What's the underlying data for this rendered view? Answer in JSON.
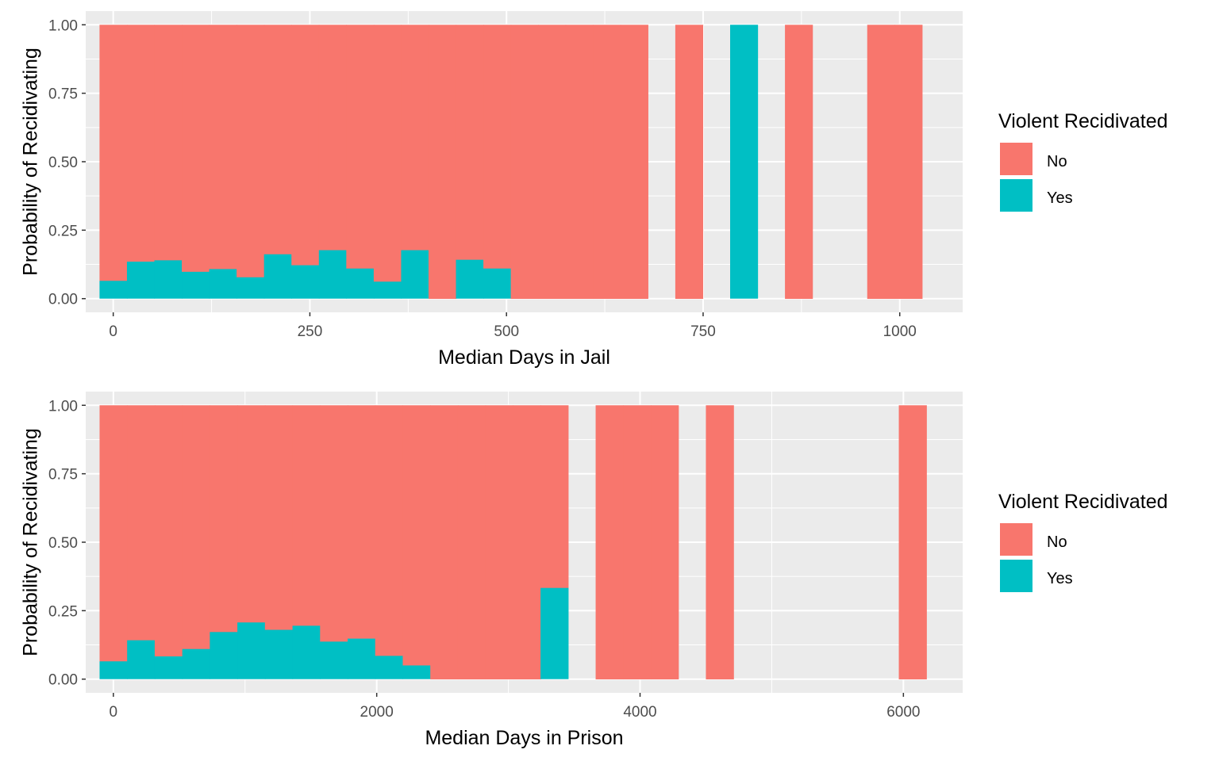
{
  "chart_data": [
    {
      "type": "bar",
      "stacked": "fill",
      "xlabel": "Median Days in Jail",
      "ylabel": "Probability of Recidivating",
      "xlim": [
        -35,
        1080
      ],
      "ylim": [
        -0.05,
        1.05
      ],
      "xticks": [
        0,
        250,
        500,
        750,
        1000
      ],
      "xtick_labels": [
        "0",
        "250",
        "500",
        "750",
        "1000"
      ],
      "yticks": [
        0,
        0.25,
        0.5,
        0.75,
        1
      ],
      "ytick_labels": [
        "0.00",
        "0.25",
        "0.50",
        "0.75",
        "1.00"
      ],
      "grid": true,
      "legend": {
        "title": "Violent Recidivated",
        "placement": "right",
        "entries": [
          {
            "label": "No",
            "color": "#F8766D"
          },
          {
            "label": "Yes",
            "color": "#00BFC4"
          }
        ]
      },
      "bin_width": 34.86,
      "bins": [
        {
          "center": 0,
          "yes": 0.065
        },
        {
          "center": 34.86,
          "yes": 0.135
        },
        {
          "center": 69.72,
          "yes": 0.14
        },
        {
          "center": 104.58,
          "yes": 0.098
        },
        {
          "center": 139.44,
          "yes": 0.108
        },
        {
          "center": 174.3,
          "yes": 0.078
        },
        {
          "center": 209.16,
          "yes": 0.162
        },
        {
          "center": 244.02,
          "yes": 0.122
        },
        {
          "center": 278.88,
          "yes": 0.177
        },
        {
          "center": 313.74,
          "yes": 0.11
        },
        {
          "center": 348.6,
          "yes": 0.062
        },
        {
          "center": 383.46,
          "yes": 0.177
        },
        {
          "center": 418.32,
          "yes": 0.0
        },
        {
          "center": 453.18,
          "yes": 0.142
        },
        {
          "center": 488.04,
          "yes": 0.11
        },
        {
          "center": 522.9,
          "yes": 0.0
        },
        {
          "center": 557.76,
          "yes": 0.0
        },
        {
          "center": 592.62,
          "yes": 0.0
        },
        {
          "center": 627.48,
          "yes": 0.0
        },
        {
          "center": 662.34,
          "yes": 0.0
        },
        {
          "center": 732.06,
          "yes": 0.0
        },
        {
          "center": 801.78,
          "yes": 1.0
        },
        {
          "center": 871.5,
          "yes": 0.0
        },
        {
          "center": 976.08,
          "yes": 0.0
        },
        {
          "center": 1010.94,
          "yes": 0.0
        }
      ]
    },
    {
      "type": "bar",
      "stacked": "fill",
      "xlabel": "Median Days in Prison",
      "ylabel": "Probability of Recidivating",
      "xlim": [
        -210,
        6450
      ],
      "ylim": [
        -0.05,
        1.05
      ],
      "xticks": [
        0,
        2000,
        4000,
        6000
      ],
      "xtick_labels": [
        "0",
        "2000",
        "4000",
        "6000"
      ],
      "yticks": [
        0,
        0.25,
        0.5,
        0.75,
        1
      ],
      "ytick_labels": [
        "0.00",
        "0.25",
        "0.50",
        "0.75",
        "1.00"
      ],
      "grid": true,
      "legend": {
        "title": "Violent Recidivated",
        "placement": "right",
        "entries": [
          {
            "label": "No",
            "color": "#F8766D"
          },
          {
            "label": "Yes",
            "color": "#00BFC4"
          }
        ]
      },
      "bin_width": 209.3,
      "bins": [
        {
          "center": 0,
          "yes": 0.065
        },
        {
          "center": 209.3,
          "yes": 0.142
        },
        {
          "center": 418.6,
          "yes": 0.083
        },
        {
          "center": 627.9,
          "yes": 0.11
        },
        {
          "center": 837.2,
          "yes": 0.172
        },
        {
          "center": 1046.5,
          "yes": 0.207
        },
        {
          "center": 1255.8,
          "yes": 0.18
        },
        {
          "center": 1465.1,
          "yes": 0.195
        },
        {
          "center": 1674.4,
          "yes": 0.137
        },
        {
          "center": 1883.7,
          "yes": 0.148
        },
        {
          "center": 2093.0,
          "yes": 0.085
        },
        {
          "center": 2302.3,
          "yes": 0.05
        },
        {
          "center": 2511.6,
          "yes": 0.0
        },
        {
          "center": 2720.9,
          "yes": 0.0
        },
        {
          "center": 2930.2,
          "yes": 0.0
        },
        {
          "center": 3139.5,
          "yes": 0.0
        },
        {
          "center": 3348.8,
          "yes": 0.333
        },
        {
          "center": 3767.4,
          "yes": 0.0
        },
        {
          "center": 3976.7,
          "yes": 0.0
        },
        {
          "center": 4186.0,
          "yes": 0.0
        },
        {
          "center": 4604.6,
          "yes": 0.0
        },
        {
          "center": 6069.7,
          "yes": 0.0
        }
      ]
    }
  ]
}
